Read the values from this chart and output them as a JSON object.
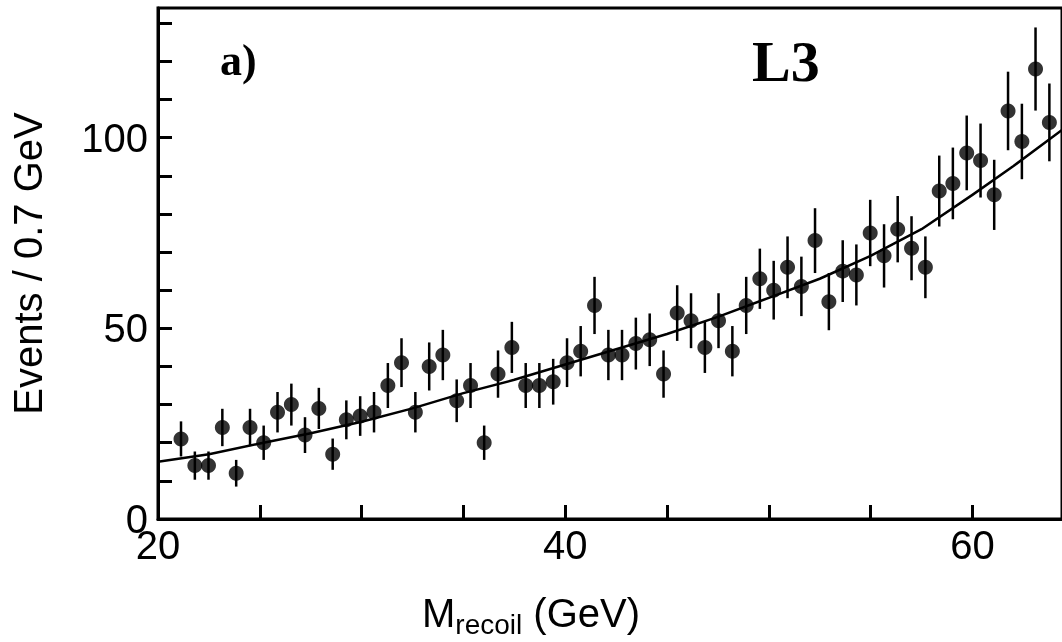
{
  "chart_data": {
    "type": "scatter",
    "xlabel": "M$_{recoil}$ (GeV)",
    "ylabel": "Events / 0.7 GeV",
    "annotations": [
      "a)",
      "L3"
    ],
    "xlim": [
      20,
      64.4
    ],
    "xticks": [
      20,
      {
        "value": 25,
        "label": null
      },
      {
        "value": 30,
        "label": null
      },
      {
        "value": 35,
        "label": null
      },
      40,
      {
        "value": 45,
        "label": null
      },
      {
        "value": 50,
        "label": null
      },
      {
        "value": 55,
        "label": null
      },
      60
    ],
    "ylim": [
      0,
      134
    ],
    "yticks": [
      0,
      {
        "value": 10,
        "label": null
      },
      {
        "value": 20,
        "label": null
      },
      {
        "value": 30,
        "label": null
      },
      {
        "value": 40,
        "label": null
      },
      50,
      {
        "value": 60,
        "label": null
      },
      {
        "value": 70,
        "label": null
      },
      {
        "value": 80,
        "label": null
      },
      {
        "value": 90,
        "label": null
      },
      100,
      {
        "value": 110,
        "label": null
      },
      {
        "value": 120,
        "label": null
      },
      {
        "value": 130,
        "label": null
      }
    ],
    "grid": false,
    "marker": "circle",
    "series": [
      {
        "type": "scatter",
        "color": "#000000",
        "x": [
          21.13,
          21.81,
          22.48,
          23.16,
          23.84,
          24.52,
          25.19,
          25.87,
          26.55,
          27.22,
          27.9,
          28.58,
          29.25,
          29.93,
          30.61,
          31.29,
          31.96,
          32.64,
          33.32,
          33.99,
          34.67,
          35.35,
          36.02,
          36.7,
          37.38,
          38.06,
          38.73,
          39.41,
          40.09,
          40.76,
          41.44,
          42.12,
          42.79,
          43.47,
          44.15,
          44.83,
          45.5,
          46.18,
          46.86,
          47.53,
          48.21,
          48.89,
          49.56,
          50.24,
          50.92,
          51.6,
          52.27,
          52.95,
          53.63,
          54.3,
          54.98,
          55.66,
          56.33,
          57.01,
          57.69,
          58.37,
          59.04,
          59.72,
          60.4,
          61.07,
          61.75,
          62.43,
          63.1,
          63.78
        ],
        "values": [
          21,
          14,
          14,
          24,
          12,
          24,
          20,
          28,
          30,
          22,
          29,
          17,
          26,
          27,
          28,
          35,
          41,
          28,
          40,
          43,
          31,
          35,
          20,
          38,
          45,
          35,
          35,
          36,
          41,
          44,
          56,
          43,
          43,
          46,
          47,
          38,
          54,
          52,
          45,
          52,
          44,
          56,
          63,
          60,
          66,
          61,
          73,
          57,
          65,
          64,
          75,
          69,
          76,
          71,
          66,
          86,
          88,
          96,
          94,
          85,
          107,
          99,
          118,
          104
        ],
        "errors": [
          4.6,
          3.7,
          3.7,
          4.9,
          3.5,
          4.9,
          4.5,
          5.3,
          5.5,
          4.7,
          5.4,
          4.1,
          5.1,
          5.2,
          5.3,
          5.9,
          6.4,
          5.3,
          6.3,
          6.6,
          5.6,
          5.9,
          4.5,
          6.2,
          6.7,
          5.9,
          5.9,
          6.0,
          6.4,
          6.6,
          7.5,
          6.6,
          6.6,
          6.8,
          6.9,
          6.2,
          7.3,
          7.2,
          6.7,
          7.2,
          6.6,
          7.5,
          7.9,
          7.7,
          8.1,
          7.8,
          8.5,
          7.5,
          8.1,
          8.0,
          8.7,
          8.3,
          8.7,
          8.4,
          8.1,
          9.3,
          9.4,
          9.8,
          9.7,
          9.2,
          10.3,
          9.9,
          10.9,
          10.2
        ]
      },
      {
        "type": "line",
        "color": "#000000",
        "marker": "none",
        "x": [
          20,
          22.5,
          25,
          27.5,
          30,
          32.5,
          35,
          37.5,
          40,
          42.5,
          45,
          47.5,
          50,
          52.5,
          55,
          57.5,
          60,
          62,
          64.4
        ],
        "values": [
          15,
          17,
          19.8,
          22.5,
          25.5,
          29,
          33,
          36.5,
          40.5,
          44.5,
          48.5,
          53,
          58,
          63,
          69,
          76,
          85,
          92.5,
          102
        ]
      }
    ]
  }
}
